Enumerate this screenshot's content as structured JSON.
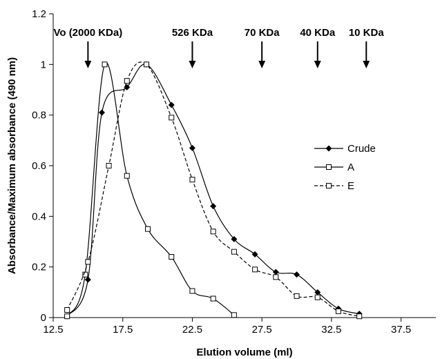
{
  "chart_data": {
    "type": "line",
    "title": "",
    "xlabel": "Elution volume (ml)",
    "ylabel": "Absorbance/Maximum absorbance (490 nm)",
    "xlim": [
      12.5,
      40
    ],
    "ylim": [
      0,
      1.2
    ],
    "x_ticks": [
      "12.5",
      "17.5",
      "22.5",
      "27.5",
      "32.5",
      "37.5"
    ],
    "y_ticks": [
      "0",
      "0.2",
      "0.4",
      "0.6",
      "0.8",
      "1",
      "1.2"
    ],
    "grid": false,
    "legend_position": "right",
    "markers": [
      {
        "label": "Vo (2000 KDa)",
        "x": 15.0
      },
      {
        "label": "526 KDa",
        "x": 22.5
      },
      {
        "label": "70 KDa",
        "x": 27.5
      },
      {
        "label": "40 KDa",
        "x": 31.5
      },
      {
        "label": "10 KDa",
        "x": 35.0
      }
    ],
    "series": [
      {
        "name": "Crude",
        "marker": "filled-diamond",
        "line": "solid",
        "x": [
          13.5,
          15.0,
          16.0,
          17.8,
          19.2,
          21.0,
          22.5,
          24.0,
          25.5,
          27.0,
          28.5,
          30.0,
          31.5,
          33.0,
          34.5
        ],
        "y": [
          0.005,
          0.15,
          0.81,
          0.91,
          1.0,
          0.84,
          0.67,
          0.44,
          0.31,
          0.25,
          0.18,
          0.17,
          0.1,
          0.035,
          0.015
        ]
      },
      {
        "name": "A",
        "marker": "open-square",
        "line": "solid",
        "x": [
          13.5,
          14.8,
          16.2,
          17.8,
          19.3,
          21.0,
          22.5,
          24.0,
          25.5
        ],
        "y": [
          0.005,
          0.17,
          1.0,
          0.56,
          0.35,
          0.24,
          0.105,
          0.075,
          0.01
        ]
      },
      {
        "name": "E",
        "marker": "open-square",
        "line": "dashed",
        "x": [
          13.5,
          15.0,
          16.5,
          17.8,
          19.2,
          21.0,
          22.5,
          24.0,
          25.5,
          27.0,
          28.5,
          30.0,
          31.5,
          33.0,
          34.5
        ],
        "y": [
          0.03,
          0.22,
          0.6,
          0.935,
          1.0,
          0.79,
          0.545,
          0.34,
          0.26,
          0.19,
          0.16,
          0.085,
          0.08,
          0.025,
          0.005
        ]
      }
    ]
  }
}
